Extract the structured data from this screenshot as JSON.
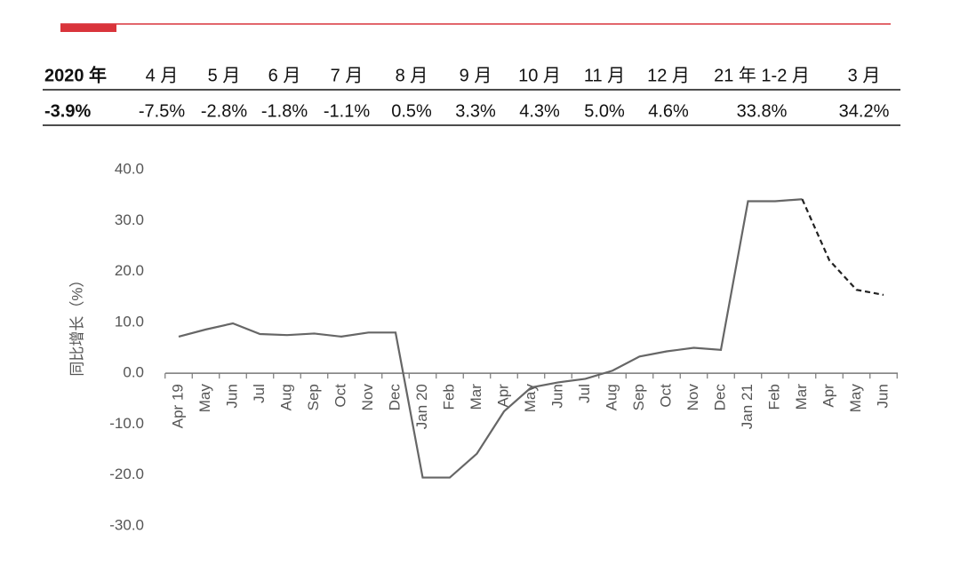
{
  "table": {
    "header": [
      "2020 年",
      "4 月",
      "5 月",
      "6 月",
      "7 月",
      "8 月",
      "9 月",
      "10 月",
      "11 月",
      "12 月",
      "21 年 1-2 月",
      "3 月"
    ],
    "rows": [
      [
        "-3.9%",
        "-7.5%",
        "-2.8%",
        "-1.8%",
        "-1.1%",
        "0.5%",
        "3.3%",
        "4.3%",
        "5.0%",
        "4.6%",
        "33.8%",
        "34.2%"
      ]
    ]
  },
  "chart_data": {
    "type": "line",
    "y_label": "同比增长（%）",
    "categories": [
      "Apr 19",
      "May",
      "Jun",
      "Jul",
      "Aug",
      "Sep",
      "Oct",
      "Nov",
      "Dec",
      "Jan 20",
      "Feb",
      "Mar",
      "Apr",
      "May",
      "Jun",
      "Jul",
      "Aug",
      "Sep",
      "Oct",
      "Nov",
      "Dec",
      "Jan 21",
      "Feb",
      "Mar",
      "Apr",
      "May",
      "Jun"
    ],
    "series": [
      {
        "color": "#666666",
        "dashed": false,
        "values": [
          7.2,
          8.6,
          9.8,
          7.7,
          7.5,
          7.8,
          7.2,
          8.0,
          8.0,
          -20.5,
          -20.5,
          -15.8,
          -7.5,
          -2.8,
          -1.8,
          -1.1,
          0.5,
          3.3,
          4.3,
          5.0,
          4.6,
          33.8,
          33.8,
          34.2,
          null,
          null,
          null
        ]
      },
      {
        "color": "#222222",
        "dashed": true,
        "values": [
          null,
          null,
          null,
          null,
          null,
          null,
          null,
          null,
          null,
          null,
          null,
          null,
          null,
          null,
          null,
          null,
          null,
          null,
          null,
          null,
          null,
          null,
          null,
          34.2,
          22.2,
          16.4,
          15.4
        ]
      }
    ],
    "ylim": [
      -30,
      40
    ],
    "yticks": [
      {
        "value": -30,
        "label": "-30.0"
      },
      {
        "value": -20,
        "label": "-20.0"
      },
      {
        "value": -10,
        "label": "-10.0"
      },
      {
        "value": 0,
        "label": "0.0"
      },
      {
        "value": 10,
        "label": "10.0"
      },
      {
        "value": 20,
        "label": "20.0"
      },
      {
        "value": 30,
        "label": "30.0"
      },
      {
        "value": 40,
        "label": "40.0"
      }
    ],
    "grid": false
  }
}
